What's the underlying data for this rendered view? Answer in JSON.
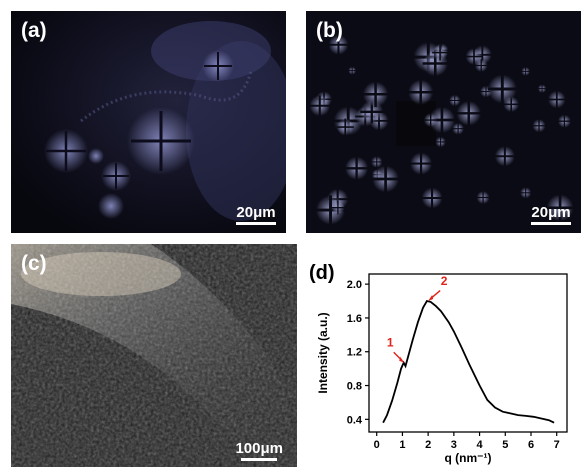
{
  "figure": {
    "panels": [
      {
        "label": "(a)",
        "scale_bar": "20μm"
      },
      {
        "label": "(b)",
        "scale_bar": "20μm"
      },
      {
        "label": "(c)",
        "scale_bar": "100μm"
      },
      {
        "label": "(d)"
      }
    ]
  },
  "chart_data": {
    "type": "line",
    "xlabel": "q (nm⁻¹)",
    "ylabel": "Intensity (a.u.)",
    "xlim": [
      -0.3,
      7.4
    ],
    "ylim": [
      0.25,
      2.12
    ],
    "x_ticks": [
      0,
      1,
      2,
      3,
      4,
      5,
      6,
      7
    ],
    "y_ticks": [
      0.4,
      0.8,
      1.2,
      1.6,
      2.0
    ],
    "series": [
      {
        "color": "#000000",
        "x": [
          0.25,
          0.4,
          0.6,
          0.8,
          0.95,
          1.05,
          1.12,
          1.2,
          1.4,
          1.6,
          1.8,
          1.95,
          2.1,
          2.3,
          2.5,
          2.8,
          3.0,
          3.3,
          3.6,
          4.0,
          4.3,
          4.6,
          4.9,
          5.2,
          5.5,
          5.8,
          6.1,
          6.4,
          6.7,
          6.9
        ],
        "y": [
          0.36,
          0.45,
          0.62,
          0.83,
          1.0,
          1.07,
          1.03,
          1.12,
          1.34,
          1.55,
          1.72,
          1.8,
          1.79,
          1.74,
          1.68,
          1.55,
          1.44,
          1.25,
          1.05,
          0.8,
          0.63,
          0.54,
          0.49,
          0.47,
          0.45,
          0.44,
          0.43,
          0.41,
          0.39,
          0.36
        ]
      }
    ],
    "annotations": [
      {
        "text": "1",
        "x": 1.07,
        "y": 1.07,
        "color": "#e2231a"
      },
      {
        "text": "2",
        "x": 2.0,
        "y": 1.8,
        "color": "#e2231a"
      }
    ]
  }
}
